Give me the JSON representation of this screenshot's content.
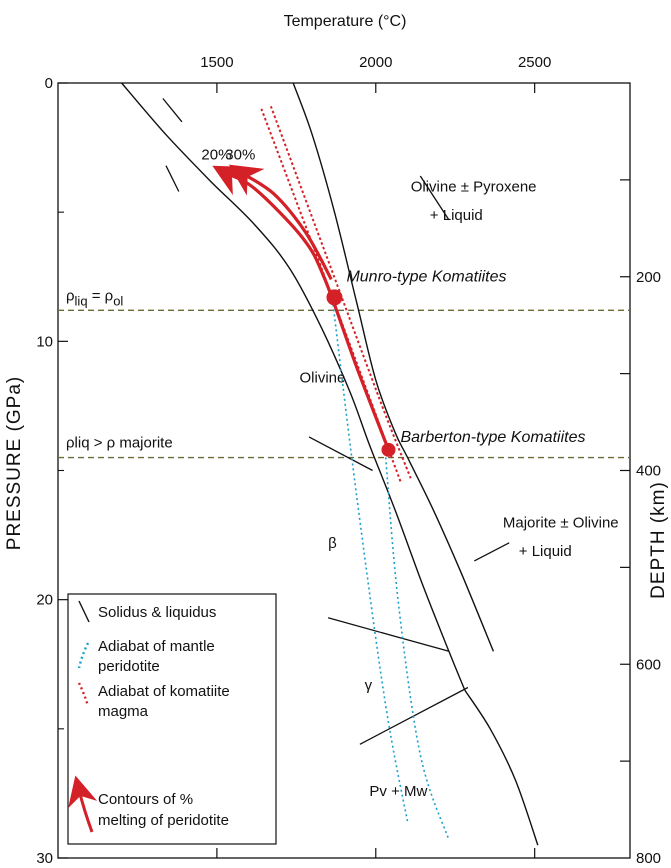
{
  "chart_data": {
    "type": "line",
    "x_title": "Temperature (°C)",
    "y_left_title": "PRESSURE (GPa)",
    "y_right_title": "DEPTH (km)",
    "x_ticks": [
      "1500",
      "2000",
      "2500"
    ],
    "y_left_ticks": [
      "0",
      "10",
      "20",
      "30"
    ],
    "y_right_ticks": [
      "200",
      "400",
      "600",
      "800"
    ],
    "xlim": [
      1000,
      2800
    ],
    "ylim": [
      0,
      30
    ],
    "depth_lim": [
      0,
      800
    ],
    "grid": false,
    "density_lines": [
      {
        "label_base": "ρ",
        "label_sub": "liq",
        "label_rest": " = ρ",
        "label_sub2": "ol",
        "pressure": 8.8
      },
      {
        "label": "ρliq > ρ majorite",
        "pressure": 14.5
      }
    ],
    "solidus": [
      [
        1200,
        0
      ],
      [
        1340,
        2
      ],
      [
        1480,
        3.8
      ],
      [
        1620,
        5.5
      ],
      [
        1730,
        7.2
      ],
      [
        1830,
        9.5
      ],
      [
        1920,
        12
      ],
      [
        1980,
        14
      ],
      [
        2060,
        16.5
      ],
      [
        2150,
        19.5
      ],
      [
        2230,
        22
      ],
      [
        2280,
        23.5
      ]
    ],
    "liquidus": [
      [
        1740,
        0
      ],
      [
        1800,
        2
      ],
      [
        1870,
        5
      ],
      [
        1940,
        8.5
      ],
      [
        2000,
        11.5
      ],
      [
        2060,
        13.5
      ],
      [
        2100,
        14.5
      ],
      [
        2180,
        16.5
      ],
      [
        2270,
        19
      ],
      [
        2370,
        22
      ]
    ],
    "lower_branch": [
      [
        2280,
        23.5
      ],
      [
        2360,
        25
      ],
      [
        2440,
        27
      ],
      [
        2510,
        29.5
      ]
    ],
    "solidus_ticks": [
      [
        [
          1330,
          0.6
        ],
        [
          1390,
          1.5
        ]
      ],
      [
        [
          1340,
          3.2
        ],
        [
          1380,
          4.2
        ]
      ]
    ],
    "phase_boundaries": [
      [
        [
          1790,
          13.7
        ],
        [
          1990,
          15.0
        ]
      ],
      [
        [
          1850,
          20.7
        ],
        [
          2230,
          22.0
        ]
      ],
      [
        [
          1950,
          25.6
        ],
        [
          2290,
          23.4
        ]
      ],
      [
        [
          2310,
          18.5
        ],
        [
          2420,
          17.8
        ]
      ],
      [
        [
          2140,
          3.6
        ],
        [
          2230,
          5.3
        ]
      ]
    ],
    "adiabat_mantle": {
      "name": "Adiabat of mantle peridotite",
      "color": "#1aa0cc",
      "lines": [
        [
          [
            1860,
            8
          ],
          [
            1940,
            16
          ],
          [
            2030,
            24
          ],
          [
            2100,
            28.6
          ]
        ],
        [
          [
            2030,
            14.3
          ],
          [
            2070,
            20
          ],
          [
            2140,
            26
          ],
          [
            2230,
            29.3
          ]
        ]
      ]
    },
    "adiabat_komatiite": {
      "name": "Adiabat of komatiite magma",
      "color": "#d42027",
      "lines": [
        [
          [
            1640,
            1.0
          ],
          [
            1830,
            7.2
          ],
          [
            1990,
            12.5
          ],
          [
            2080,
            15.5
          ]
        ],
        [
          [
            1670,
            0.9
          ],
          [
            1860,
            7.2
          ],
          [
            2020,
            12.5
          ],
          [
            2110,
            15.3
          ]
        ]
      ]
    },
    "melting_contours": [
      {
        "label": "20%",
        "points": [
          [
            2040,
            14.2
          ],
          [
            1940,
            11.0
          ],
          [
            1840,
            7.6
          ],
          [
            1770,
            6.0
          ],
          [
            1620,
            4.1
          ],
          [
            1530,
            3.5
          ]
        ],
        "color": "#d42027"
      },
      {
        "label": "30%",
        "points": [
          [
            1860,
            7.6
          ],
          [
            1780,
            5.8
          ],
          [
            1680,
            4.3
          ],
          [
            1580,
            3.5
          ]
        ],
        "color": "#d42027"
      }
    ],
    "points": [
      {
        "label": "Munro-type Komatiites",
        "x": 1870,
        "y": 8.3,
        "color": "#d42027"
      },
      {
        "label": "Barberton-type Komatiites",
        "x": 2040,
        "y": 14.2,
        "color": "#d42027"
      }
    ],
    "annotations": [
      {
        "text": "Olivine ± Pyroxene",
        "x": 2110,
        "y": 4.2
      },
      {
        "text": "+ Liquid",
        "x": 2170,
        "y": 5.3
      },
      {
        "text": "Olivine",
        "x": 1760,
        "y": 11.6
      },
      {
        "text": "Majorite ± Olivine",
        "x": 2400,
        "y": 17.2
      },
      {
        "text": "+ Liquid",
        "x": 2450,
        "y": 18.3
      },
      {
        "text": "β",
        "x": 1850,
        "y": 18.0
      },
      {
        "text": "γ",
        "x": 1965,
        "y": 23.5
      },
      {
        "text": "Pv  + Mw",
        "x": 1980,
        "y": 27.6
      }
    ],
    "legend": {
      "position": "bottom-left",
      "items": [
        {
          "type": "solid",
          "label": "Solidus & liquidus"
        },
        {
          "type": "dotted-blue",
          "label": "Adiabat of mantle peridotite",
          "lines": [
            "Adiabat of mantle",
            "peridotite"
          ]
        },
        {
          "type": "dotted-red",
          "label": "Adiabat of komatiite magma",
          "lines": [
            "Adiabat of komatiite",
            "magma"
          ]
        },
        {
          "type": "arrow-red",
          "label": "Contours of % melting of peridotite",
          "lines": [
            "Contours of %",
            "melting of peridotite"
          ]
        }
      ]
    }
  }
}
